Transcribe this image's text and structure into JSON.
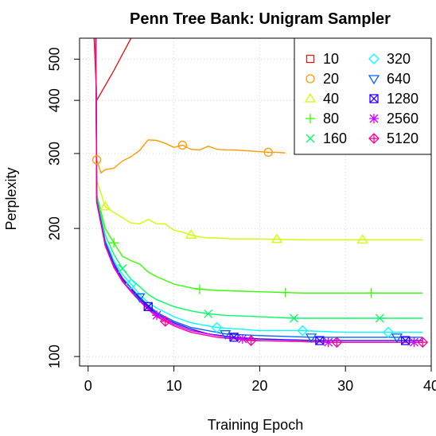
{
  "chart_data": {
    "type": "line",
    "title": "Penn Tree Bank: Unigram Sampler",
    "xlabel": "Training Epoch",
    "ylabel": "Perplexity",
    "xlim": [
      -1,
      40
    ],
    "ylim": [
      95,
      560
    ],
    "y_scale": "log",
    "x_ticks": [
      0,
      10,
      20,
      30,
      40
    ],
    "y_ticks": [
      100,
      200,
      300,
      400,
      500
    ],
    "grid": true,
    "legend_position": "top-right",
    "series": [
      {
        "name": "10",
        "color": "#e41a1c",
        "marker": "square",
        "x": [
          0.7,
          1,
          3,
          5
        ],
        "y": [
          560,
          400,
          470,
          560
        ]
      },
      {
        "name": "20",
        "color": "#ff9900",
        "marker": "circle",
        "x": [
          0.9,
          1,
          1.5,
          2,
          3,
          4,
          5,
          6,
          7,
          8,
          9,
          10,
          11,
          12,
          13,
          14,
          15,
          16,
          17,
          18,
          19,
          20,
          21,
          22,
          23
        ],
        "y": [
          560,
          290,
          270,
          275,
          277,
          288,
          295,
          305,
          323,
          322,
          317,
          310,
          314,
          307,
          306,
          312,
          307,
          306,
          306,
          305,
          304,
          303,
          302,
          302,
          301
        ],
        "marker_x": [
          1,
          11,
          21
        ]
      },
      {
        "name": "40",
        "color": "#ccff00",
        "marker": "triangle-up",
        "x": [
          0.9,
          1,
          2,
          3,
          4,
          5,
          6,
          7,
          8,
          9,
          10,
          11,
          12,
          13,
          14,
          15,
          17,
          20,
          25,
          30,
          35,
          39
        ],
        "y": [
          560,
          260,
          225,
          218,
          212,
          206,
          205,
          210,
          205,
          205,
          198,
          196,
          193,
          191,
          190,
          190,
          189,
          189,
          188,
          188,
          188,
          188
        ],
        "marker_x": [
          2,
          12,
          22,
          32
        ]
      },
      {
        "name": "80",
        "color": "#33ff00",
        "marker": "plus",
        "x": [
          0.9,
          1,
          2,
          3,
          4,
          5,
          6,
          7,
          8,
          10,
          12,
          13,
          15,
          20,
          25,
          30,
          35,
          39
        ],
        "y": [
          560,
          240,
          200,
          185,
          172,
          168,
          165,
          158,
          154,
          148,
          145,
          144,
          143,
          142,
          141,
          141,
          141,
          141
        ],
        "marker_x": [
          3,
          13,
          23,
          33
        ]
      },
      {
        "name": "160",
        "color": "#00ff66",
        "marker": "x",
        "x": [
          0.9,
          1,
          2,
          3,
          4,
          5,
          6,
          7,
          8,
          10,
          12,
          14,
          16,
          20,
          24,
          30,
          34,
          39
        ],
        "y": [
          560,
          237,
          193,
          174,
          161,
          152,
          146,
          140,
          136,
          131,
          128,
          126,
          125,
          124,
          123,
          123,
          123,
          123
        ],
        "marker_x": [
          4,
          14,
          24,
          34
        ]
      },
      {
        "name": "320",
        "color": "#00ffff",
        "marker": "diamond",
        "x": [
          0.9,
          1,
          2,
          3,
          4,
          5,
          6,
          7,
          8,
          10,
          12,
          15,
          20,
          25,
          30,
          35,
          39
        ],
        "y": [
          560,
          235,
          188,
          168,
          156,
          148,
          140,
          134,
          130,
          124,
          120,
          117,
          115,
          115,
          114,
          114,
          114
        ],
        "marker_x": [
          5,
          15,
          25,
          35
        ]
      },
      {
        "name": "640",
        "color": "#0066ff",
        "marker": "triangle-down",
        "x": [
          0.9,
          1,
          2,
          3,
          4,
          5,
          6,
          7,
          8,
          10,
          12,
          16,
          20,
          26,
          30,
          36,
          39
        ],
        "y": [
          560,
          233,
          186,
          166,
          153,
          145,
          138,
          132,
          127,
          121,
          117,
          113,
          112,
          111,
          111,
          111,
          111
        ],
        "marker_x": [
          6,
          16,
          26,
          36
        ]
      },
      {
        "name": "1280",
        "color": "#3300ff",
        "marker": "square-x",
        "x": [
          0.9,
          1,
          2,
          3,
          4,
          5,
          6,
          7,
          8,
          10,
          12,
          14,
          17,
          20,
          27,
          30,
          37,
          39
        ],
        "y": [
          560,
          232,
          184,
          164,
          152,
          144,
          137,
          131,
          126,
          120,
          116,
          113,
          111,
          110,
          109,
          109,
          109,
          109
        ],
        "marker_x": [
          7,
          17,
          27,
          37
        ]
      },
      {
        "name": "2560",
        "color": "#cc00ff",
        "marker": "asterisk",
        "x": [
          0.9,
          1,
          2,
          3,
          4,
          5,
          6,
          7,
          8,
          10,
          12,
          15,
          18,
          20,
          28,
          30,
          38,
          39
        ],
        "y": [
          560,
          231,
          183,
          163,
          151,
          143,
          136,
          130,
          125,
          119,
          115,
          112,
          110,
          109,
          108,
          108,
          108,
          108
        ],
        "marker_x": [
          8,
          18,
          28,
          38
        ]
      },
      {
        "name": "5120",
        "color": "#ff0099",
        "marker": "diamond-plus",
        "x": [
          0.9,
          1,
          2,
          3,
          4,
          5,
          6,
          7,
          8,
          9,
          10,
          12,
          15,
          19,
          20,
          29,
          30,
          39
        ],
        "y": [
          560,
          230,
          182,
          162,
          150,
          142,
          135,
          129,
          124,
          121,
          118,
          114,
          111,
          109,
          109,
          108,
          108,
          108
        ],
        "marker_x": [
          9,
          19,
          29,
          39
        ]
      }
    ]
  }
}
